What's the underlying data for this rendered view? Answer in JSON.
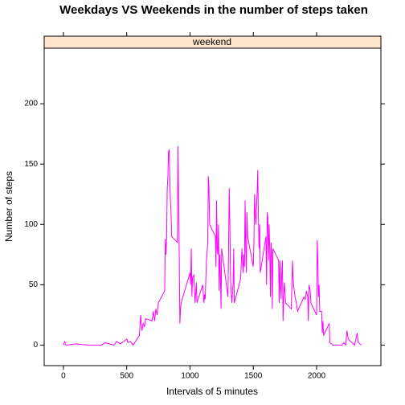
{
  "chart_data": {
    "type": "line",
    "title": "Weekdays VS Weekends in the number of steps taken",
    "strip": "weekend",
    "xlabel": "Intervals of 5 minutes",
    "ylabel": "Number of steps",
    "xlim": [
      -152,
      2508
    ],
    "ylim": [
      -17,
      246
    ],
    "xticks": [
      0,
      500,
      1000,
      1500,
      2000
    ],
    "yticks": [
      0,
      50,
      100,
      150,
      200
    ],
    "series": [
      {
        "color": "#ff00ff",
        "x": [
          0,
          10,
          20,
          100,
          200,
          300,
          330,
          400,
          420,
          450,
          500,
          510,
          530,
          550,
          600,
          610,
          620,
          630,
          640,
          650,
          700,
          710,
          720,
          730,
          740,
          750,
          800,
          805,
          810,
          815,
          820,
          825,
          830,
          835,
          840,
          845,
          850,
          855,
          900,
          905,
          910,
          915,
          920,
          925,
          930,
          1000,
          1005,
          1010,
          1015,
          1020,
          1030,
          1040,
          1050,
          1055,
          1100,
          1110,
          1115,
          1120,
          1130,
          1140,
          1145,
          1150,
          1155,
          1200,
          1205,
          1210,
          1215,
          1220,
          1225,
          1230,
          1235,
          1240,
          1245,
          1250,
          1300,
          1310,
          1315,
          1320,
          1330,
          1340,
          1345,
          1350,
          1400,
          1410,
          1420,
          1425,
          1430,
          1435,
          1440,
          1445,
          1450,
          1455,
          1500,
          1505,
          1510,
          1515,
          1520,
          1530,
          1535,
          1540,
          1545,
          1550,
          1555,
          1600,
          1605,
          1610,
          1615,
          1620,
          1625,
          1630,
          1635,
          1640,
          1645,
          1650,
          1655,
          1700,
          1705,
          1710,
          1715,
          1720,
          1725,
          1730,
          1735,
          1740,
          1745,
          1750,
          1755,
          1800,
          1805,
          1810,
          1815,
          1820,
          1830,
          1840,
          1850,
          1900,
          1910,
          1920,
          1930,
          1935,
          1940,
          1950,
          1955,
          2000,
          2005,
          2010,
          2015,
          2020,
          2025,
          2040,
          2045,
          2050,
          2055,
          2100,
          2105,
          2130,
          2200,
          2215,
          2230,
          2240,
          2250,
          2300,
          2320,
          2330,
          2355
        ],
        "values": [
          0,
          3,
          0,
          1,
          0,
          0,
          2,
          0,
          3,
          1,
          5,
          2,
          3,
          0,
          8,
          25,
          12,
          18,
          15,
          22,
          20,
          28,
          20,
          30,
          25,
          35,
          45,
          88,
          75,
          88,
          130,
          138,
          160,
          162,
          140,
          120,
          110,
          90,
          85,
          165,
          120,
          75,
          18,
          30,
          35,
          60,
          50,
          80,
          40,
          56,
          58,
          35,
          52,
          35,
          50,
          35,
          42,
          38,
          70,
          85,
          140,
          130,
          100,
          90,
          65,
          120,
          80,
          75,
          100,
          45,
          75,
          60,
          30,
          80,
          40,
          130,
          100,
          55,
          35,
          50,
          80,
          35,
          55,
          80,
          60,
          75,
          65,
          120,
          80,
          60,
          110,
          90,
          65,
          85,
          125,
          110,
          100,
          125,
          145,
          110,
          80,
          100,
          60,
          90,
          50,
          110,
          105,
          70,
          100,
          80,
          40,
          85,
          75,
          30,
          80,
          70,
          35,
          70,
          50,
          38,
          60,
          70,
          20,
          40,
          52,
          45,
          35,
          30,
          50,
          70,
          55,
          48,
          40,
          35,
          28,
          40,
          38,
          45,
          40,
          20,
          50,
          45,
          35,
          25,
          87,
          70,
          40,
          50,
          28,
          28,
          10,
          20,
          8,
          18,
          2,
          0,
          0,
          2,
          0,
          12,
          5,
          0,
          10,
          2,
          0
        ]
      }
    ]
  }
}
